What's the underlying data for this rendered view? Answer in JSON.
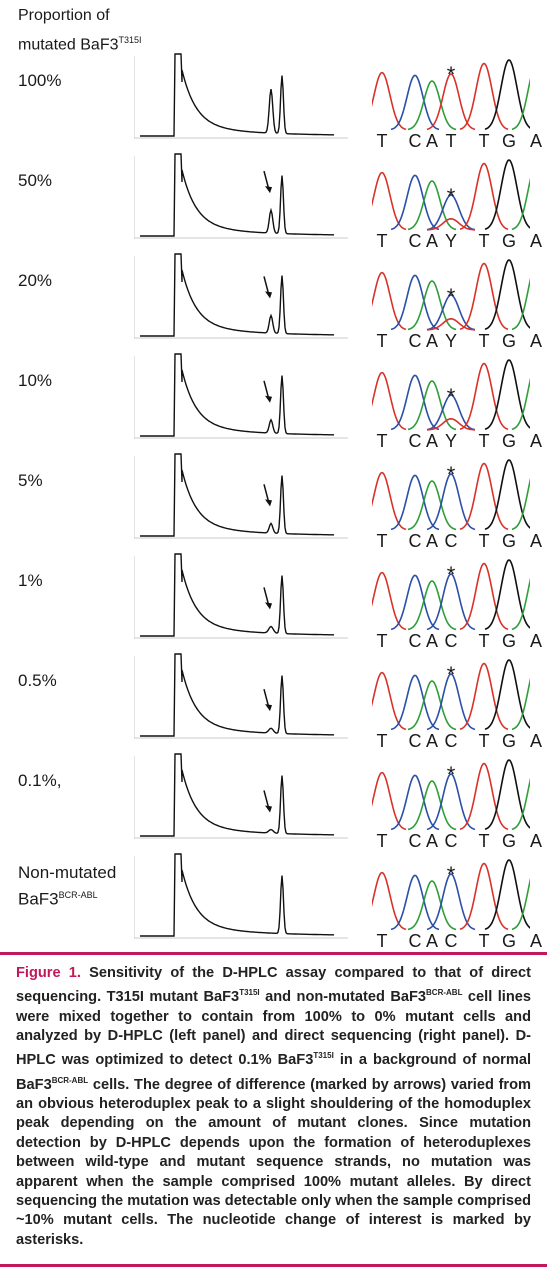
{
  "header": {
    "line1": "Proportion of",
    "line2": "mutated BaF3",
    "sup": "T315I"
  },
  "rows": [
    {
      "label": "100%",
      "bases": [
        "T",
        "C",
        "A",
        "T",
        "T",
        "G",
        "A"
      ]
    },
    {
      "label": "50%",
      "bases": [
        "T",
        "C",
        "A",
        "Y",
        "T",
        "G",
        "A"
      ]
    },
    {
      "label": "20%",
      "bases": [
        "T",
        "C",
        "A",
        "Y",
        "T",
        "G",
        "A"
      ]
    },
    {
      "label": "10%",
      "bases": [
        "T",
        "C",
        "A",
        "Y",
        "T",
        "G",
        "A"
      ]
    },
    {
      "label": "5%",
      "bases": [
        "T",
        "C",
        "A",
        "C",
        "T",
        "G",
        "A"
      ]
    },
    {
      "label": "1%",
      "bases": [
        "T",
        "C",
        "A",
        "C",
        "T",
        "G",
        "A"
      ]
    },
    {
      "label": "0.5%",
      "bases": [
        "T",
        "C",
        "A",
        "C",
        "T",
        "G",
        "A"
      ]
    },
    {
      "label": "0.1%,",
      "bases": [
        "T",
        "C",
        "A",
        "C",
        "T",
        "G",
        "A"
      ]
    },
    {
      "label": "Non-mutated",
      "label2": "BaF3",
      "sup": "BCR-ABL",
      "bases": [
        "T",
        "C",
        "A",
        "C",
        "T",
        "G",
        "A"
      ]
    }
  ],
  "asterisk": "*",
  "caption": {
    "fig": "Figure 1.",
    "p1": " Sensitivity of the D-HPLC assay compared to that of direct sequencing. T315I mutant BaF3",
    "s1": "T315I",
    "p2": " and non-mutated BaF3",
    "s2": "BCR-ABL",
    "p3": " cell lines were mixed together to contain from 100% to 0% mutant cells and analyzed by D-HPLC (left panel) and direct sequencing (right panel). D-HPLC was optimized to detect 0.1% BaF3",
    "s3": "T315I",
    "p4": " in a background of normal BaF3",
    "s4": "BCR-ABL",
    "p5": " cells. The degree of difference (marked by arrows) varied from an obvious heteroduplex peak to a slight shouldering of the homoduplex peak depending on the amount of mutant clones. Since mutation detection by D-HPLC depends upon the formation of heteroduplexes between wild-type and mutant sequence strands, no mutation was apparent when the sample comprised 100% mutant alleles. By direct sequencing the mutation was detectable only when the sample comprised ~10% mutant cells. The nucleotide change of interest is marked by asterisks."
  },
  "colors": {
    "A": "#2e9e3a",
    "C": "#2b4fa8",
    "G": "#111111",
    "T": "#d8322a",
    "accent": "#c2185b"
  },
  "arrows": [
    false,
    true,
    true,
    true,
    true,
    true,
    true,
    true,
    false
  ]
}
